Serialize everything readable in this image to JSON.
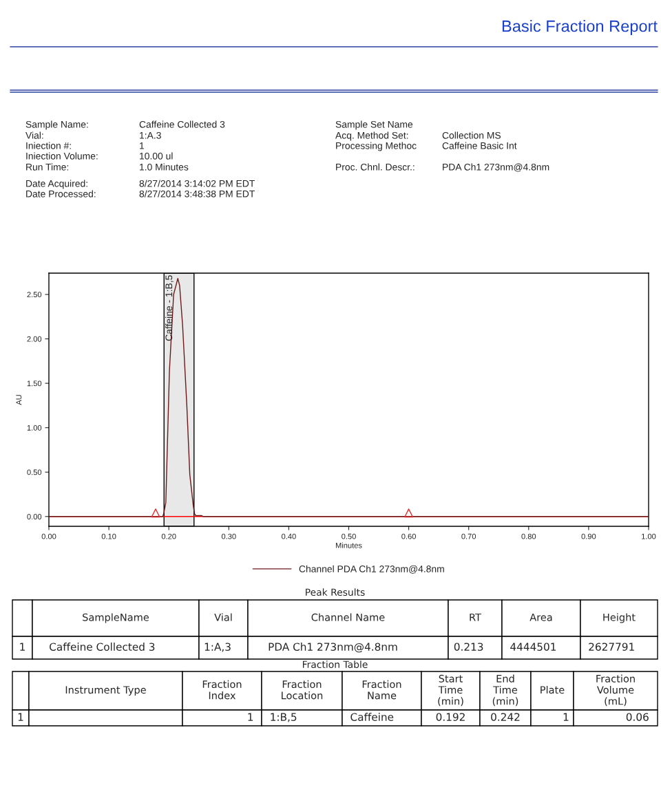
{
  "chart_data": {
    "type": "line",
    "title": "Basic Fraction Report",
    "xlabel": "Minutes",
    "ylabel": "AU",
    "xlim": [
      0,
      1.0
    ],
    "ylim": [
      -0.11,
      2.74
    ],
    "xticks": [
      {
        "value": 0,
        "label": "0.00"
      },
      {
        "value": 0.1,
        "label": "0.10"
      },
      {
        "value": 0.2,
        "label": "0.20"
      },
      {
        "value": 0.3,
        "label": "0.30"
      },
      {
        "value": 0.4,
        "label": "0.40"
      },
      {
        "value": 0.5,
        "label": "0.50"
      },
      {
        "value": 0.6,
        "label": "0.60"
      },
      {
        "value": 0.7,
        "label": "0.70"
      },
      {
        "value": 0.8,
        "label": "0.80"
      },
      {
        "value": 0.9,
        "label": "0.90"
      },
      {
        "value": 1.0,
        "label": "1.00"
      }
    ],
    "yticks": [
      {
        "value": 0,
        "label": "0.00"
      },
      {
        "value": 0.5,
        "label": "0.50"
      },
      {
        "value": 1.0,
        "label": "1.00"
      },
      {
        "value": 1.5,
        "label": "1.50"
      },
      {
        "value": 2.0,
        "label": "2.00"
      },
      {
        "value": 2.5,
        "label": "2.50"
      }
    ],
    "series": [
      {
        "name": "Channel PDA Ch1 273nm@4.8nm",
        "color": "#6b1a1a",
        "x": [
          0,
          0.19,
          0.192,
          0.195,
          0.201,
          0.208,
          0.215,
          0.218,
          0.223,
          0.23,
          0.235,
          0.241,
          0.243,
          0.245,
          0.255,
          0.257,
          1.0
        ],
        "values": [
          0,
          0,
          0.05,
          0.16,
          1.64,
          2.5,
          2.68,
          2.6,
          2.15,
          1.25,
          0.47,
          0.11,
          0.03,
          0.01,
          0.01,
          0,
          0
        ]
      },
      {
        "type": "scatter",
        "marker": "triangle",
        "color": "#e03030",
        "x": [
          0.178,
          0.6
        ],
        "values": [
          0.04,
          0.04
        ]
      }
    ],
    "bands": [
      {
        "axis": "x",
        "from": 0.192,
        "to": 0.242,
        "label": "Caffeine - 1:B,5",
        "color": "#e8e8e8"
      }
    ],
    "ref_lines": [
      {
        "axis": "y",
        "value": 0,
        "color": "#ff0000"
      }
    ],
    "grid": false,
    "legend": "bottom",
    "annotations": [
      "Sample Name:",
      "Caffeine Collected 3",
      "Vial:",
      "1:A.3",
      "Iniection #:",
      "1",
      "Iniection Volume:",
      "10.00 ul",
      "Run Time:",
      "1.0 Minutes",
      "Date Acquired:",
      "8/27/2014 3:14:02 PM EDT",
      "Date Processed:",
      "8/27/2014 3:48:38 PM EDT",
      "Sample Set Name",
      "Acq. Method Set:",
      "Collection MS",
      "Processing Methoc",
      "Caffeine Basic Int",
      "Proc. Chnl. Descr.:",
      "PDA Ch1 273nm@4.8nm",
      "Peak Results",
      "SampleName",
      "Vial",
      "Channel Name",
      "RT",
      "Area",
      "Height",
      "1",
      "Caffeine Collected 3",
      "1:A,3",
      "PDA Ch1 273nm@4.8nm",
      "0.213",
      "4444501",
      "2627791",
      "Fraction Table",
      "Instrument Type",
      "Fraction\nIndex",
      "Fraction\nLocation",
      "Fraction\nName",
      "Start\nTime\n(min)",
      "End\nTime\n(min)",
      "Plate",
      "Fraction\nVolume\n(mL)",
      "1",
      "1",
      "1:B,5",
      "Caffeine",
      "0.192",
      "0.242",
      "1",
      "0.06"
    ]
  }
}
